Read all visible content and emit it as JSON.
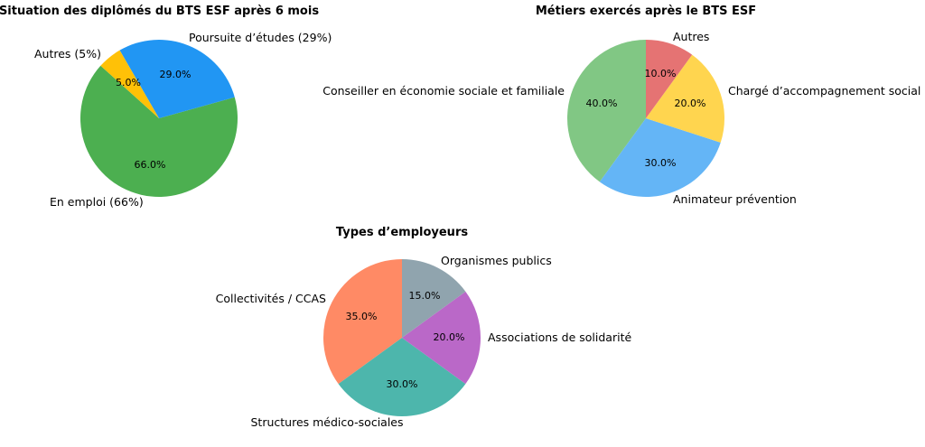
{
  "chart_data": [
    {
      "type": "pie",
      "title": "Situation des diplômés du BTS ESF après 6 mois",
      "labels": [
        "En emploi (66%)",
        "Poursuite d’études (29%)",
        "Autres (5%)"
      ],
      "values": [
        66.0,
        29.0,
        5.0
      ],
      "value_labels": [
        "66.0%",
        "29.0%",
        "5.0%"
      ],
      "colors": [
        "#4caf50",
        "#2196f3",
        "#ffc107"
      ]
    },
    {
      "type": "pie",
      "title": "Métiers exercés après le BTS ESF",
      "labels": [
        "Conseiller en économie sociale et familiale",
        "Animateur prévention",
        "Chargé d’accompagnement social",
        "Autres"
      ],
      "values": [
        40.0,
        30.0,
        20.0,
        10.0
      ],
      "value_labels": [
        "40.0%",
        "30.0%",
        "20.0%",
        "10.0%"
      ],
      "colors": [
        "#81c784",
        "#64b5f6",
        "#ffd54f",
        "#e57373"
      ]
    },
    {
      "type": "pie",
      "title": "Types d’employeurs",
      "labels": [
        "Collectivités / CCAS",
        "Structures médico-sociales",
        "Associations de solidarité",
        "Organismes publics"
      ],
      "values": [
        35.0,
        30.0,
        20.0,
        15.0
      ],
      "value_labels": [
        "35.0%",
        "30.0%",
        "20.0%",
        "15.0%"
      ],
      "colors": [
        "#ff8a65",
        "#4db6ac",
        "#ba68c8",
        "#90a4ae"
      ]
    }
  ]
}
